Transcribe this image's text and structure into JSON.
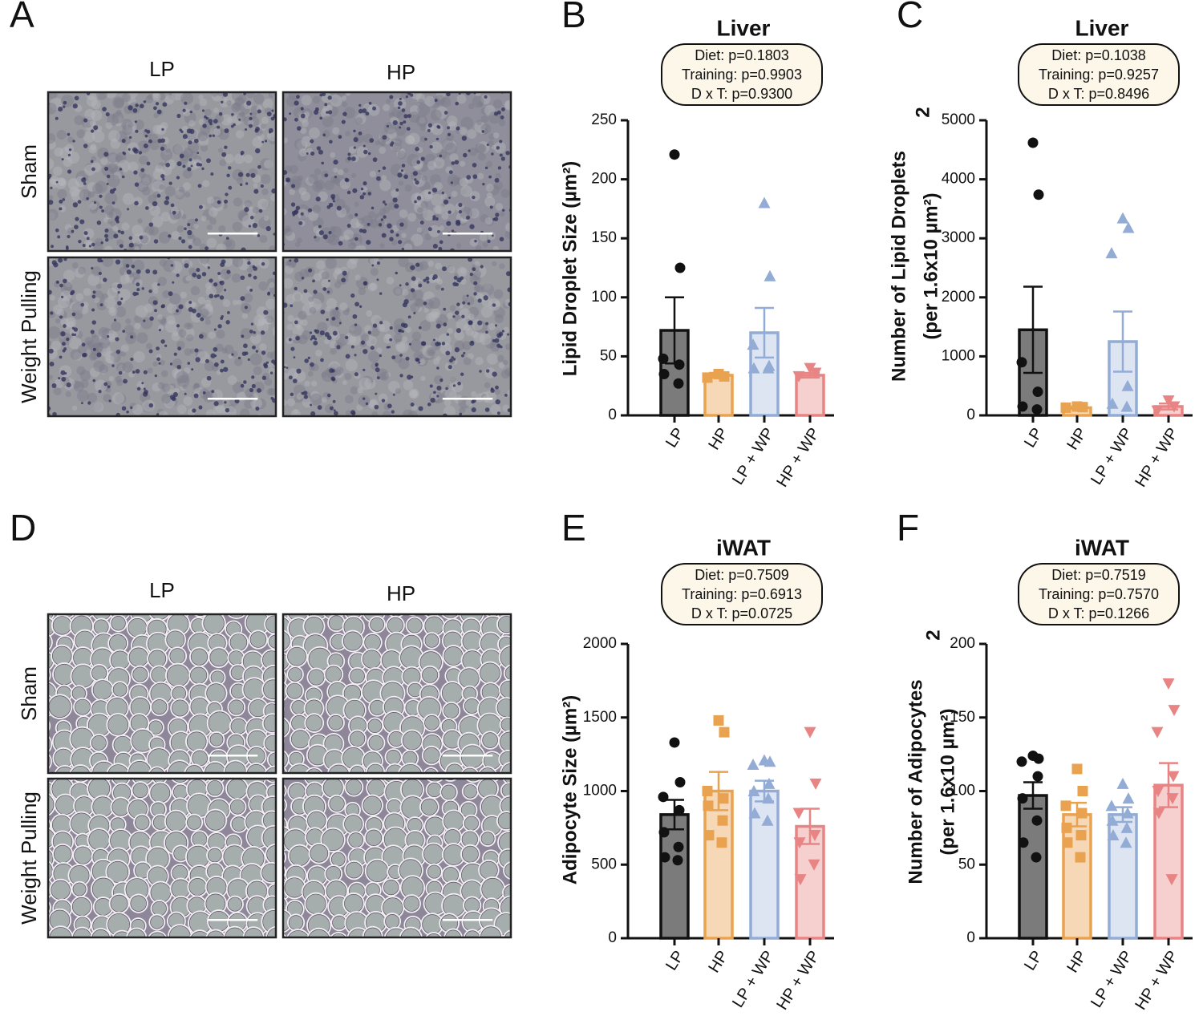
{
  "micrographs": [
    {
      "panel_label": "A",
      "columns": [
        "LP",
        "HP"
      ],
      "rows": [
        "Sham",
        "Weight Pulling"
      ]
    },
    {
      "panel_label": "D",
      "columns": [
        "LP",
        "HP"
      ],
      "rows": [
        "Sham",
        "Weight Pulling"
      ]
    }
  ],
  "chart_data": [
    {
      "type": "bar",
      "panel_label": "B",
      "title": "Liver",
      "annotations": [
        "Diet: p=0.1803",
        "Training: p=0.9903",
        "D x T: p=0.9300"
      ],
      "ylabel": [
        "Lipid Droplet Size (µm²)"
      ],
      "categories": [
        "LP",
        "HP",
        "LP + WP",
        "HP + WP"
      ],
      "values": [
        72,
        34,
        70,
        34
      ],
      "errors": [
        28,
        2,
        21,
        2
      ],
      "points": [
        [
          221,
          125,
          48,
          43,
          35,
          27
        ],
        [
          35,
          33,
          32
        ],
        [
          180,
          118,
          60,
          42,
          40,
          40
        ],
        [
          40,
          36,
          33
        ]
      ],
      "colors": [
        "#111111",
        "#e9a24f",
        "#93acd6",
        "#e88484"
      ],
      "fill_colors": [
        "#7b7b7b",
        "#f6d8b6",
        "#dde5f3",
        "#f6cfcf"
      ],
      "markers": [
        "circle",
        "square",
        "triangle",
        "inverted-triangle"
      ],
      "ylim": [
        0,
        250
      ],
      "yticks": [
        0,
        50,
        100,
        150,
        200,
        250
      ]
    },
    {
      "type": "bar",
      "panel_label": "C",
      "title": "Liver",
      "annotations": [
        "Diet: p=0.1038",
        "Training: p=0.9257",
        "D x T: p=0.8496"
      ],
      "ylabel": [
        "Number of Lipid Droplets",
        "(per 1.6x10  µm²)"
      ],
      "ylabel_exponent": "2",
      "categories": [
        "LP",
        "HP",
        "LP + WP",
        "HP + WP"
      ],
      "values": [
        1450,
        130,
        1250,
        150
      ],
      "errors": [
        730,
        20,
        510,
        50
      ],
      "points": [
        [
          4620,
          3740,
          900,
          400,
          150,
          100
        ],
        [
          150,
          140,
          130
        ],
        [
          3340,
          3180,
          2750,
          500,
          200,
          150
        ],
        [
          250,
          150,
          80
        ]
      ],
      "colors": [
        "#111111",
        "#e9a24f",
        "#93acd6",
        "#e88484"
      ],
      "fill_colors": [
        "#7b7b7b",
        "#f6d8b6",
        "#dde5f3",
        "#f6cfcf"
      ],
      "markers": [
        "circle",
        "square",
        "triangle",
        "inverted-triangle"
      ],
      "ylim": [
        0,
        5000
      ],
      "yticks": [
        0,
        1000,
        2000,
        3000,
        4000,
        5000
      ]
    },
    {
      "type": "bar",
      "panel_label": "E",
      "title": "iWAT",
      "annotations": [
        "Diet: p=0.7509",
        "Training: p=0.6913",
        "D x T: p=0.0725"
      ],
      "ylabel": [
        "Adipocyte Size (µm²)"
      ],
      "categories": [
        "LP",
        "HP",
        "LP + WP",
        "HP + WP"
      ],
      "values": [
        840,
        1000,
        1000,
        760
      ],
      "errors": [
        100,
        130,
        70,
        120
      ],
      "points": [
        [
          1330,
          1060,
          960,
          870,
          720,
          620,
          550,
          530
        ],
        [
          1480,
          1400,
          1000,
          950,
          900,
          800,
          700,
          650
        ],
        [
          1210,
          1200,
          1180,
          1050,
          1000,
          950,
          850,
          800
        ],
        [
          1400,
          1050,
          850,
          700,
          650,
          500,
          400
        ]
      ],
      "colors": [
        "#111111",
        "#e9a24f",
        "#93acd6",
        "#e88484"
      ],
      "fill_colors": [
        "#7b7b7b",
        "#f6d8b6",
        "#dde5f3",
        "#f6cfcf"
      ],
      "markers": [
        "circle",
        "square",
        "triangle",
        "inverted-triangle"
      ],
      "ylim": [
        0,
        2000
      ],
      "yticks": [
        0,
        500,
        1000,
        1500,
        2000
      ]
    },
    {
      "type": "bar",
      "panel_label": "F",
      "title": "iWAT",
      "annotations": [
        "Diet: p=0.7519",
        "Training: p=0.7570",
        "D x T: p=0.1266"
      ],
      "ylabel": [
        "Number of Adipocytes",
        "(per 1.6x10  µm²)"
      ],
      "ylabel_exponent": "2",
      "categories": [
        "LP",
        "HP",
        "LP + WP",
        "HP + WP"
      ],
      "values": [
        97,
        84,
        84,
        104
      ],
      "errors": [
        9,
        8,
        5,
        15
      ],
      "points": [
        [
          124,
          122,
          120,
          110,
          95,
          80,
          65,
          55
        ],
        [
          115,
          100,
          90,
          85,
          75,
          70,
          65,
          55
        ],
        [
          105,
          95,
          90,
          85,
          80,
          75,
          70,
          65
        ],
        [
          173,
          155,
          140,
          110,
          100,
          95,
          85,
          40
        ]
      ],
      "colors": [
        "#111111",
        "#e9a24f",
        "#93acd6",
        "#e88484"
      ],
      "fill_colors": [
        "#7b7b7b",
        "#f6d8b6",
        "#dde5f3",
        "#f6cfcf"
      ],
      "markers": [
        "circle",
        "square",
        "triangle",
        "inverted-triangle"
      ],
      "ylim": [
        0,
        200
      ],
      "yticks": [
        0,
        50,
        100,
        150,
        200
      ]
    }
  ]
}
